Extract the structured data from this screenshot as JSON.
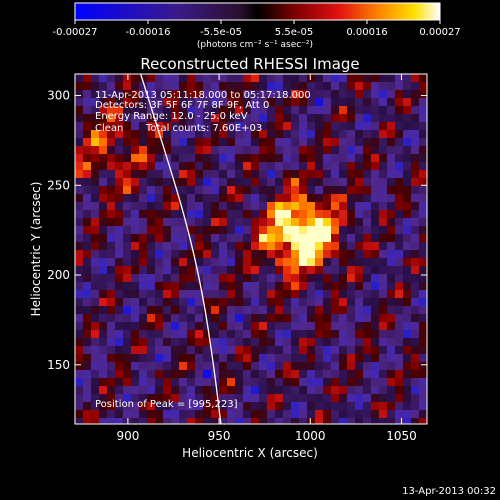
{
  "chart_data": {
    "type": "heatmap",
    "title": "Reconstructed RHESSI Image",
    "xlabel": "Heliocentric X (arcsec)",
    "ylabel": "Heliocentric Y (arcsec)",
    "xlim": [
      871,
      1064
    ],
    "ylim": [
      117,
      312
    ],
    "x_ticks": [
      900,
      950,
      1000,
      1050
    ],
    "y_ticks": [
      150,
      200,
      250,
      300
    ],
    "colorbar": {
      "ticks": [
        "-0.00027",
        "-0.00016",
        "-5.5e-05",
        "5.5e-05",
        "0.00016",
        "0.00027"
      ],
      "unit_label": "(photons cm⁻² s⁻¹ asec⁻²)",
      "range": [
        -0.00027,
        0.00027
      ]
    },
    "annotations": {
      "time_range": "11-Apr-2013 05:11:18.000 to 05:17:18.000",
      "detectors": "Detectors: 3F 5F 6F 7F 8F 9F, Att 0",
      "energy": "Energy Range: 12.0 - 25.0 keV",
      "method": "Clean",
      "counts": "Total counts: 7.60E+03",
      "peak": "Position of Peak = [995,223]"
    },
    "peak": {
      "x": 995,
      "y": 223
    },
    "limb_curve": [
      [
        907,
        312
      ],
      [
        920,
        270
      ],
      [
        932,
        230
      ],
      [
        941,
        190
      ],
      [
        947,
        150
      ],
      [
        951,
        117
      ]
    ]
  },
  "footer": {
    "date": "13-Apr-2013 00:32"
  }
}
